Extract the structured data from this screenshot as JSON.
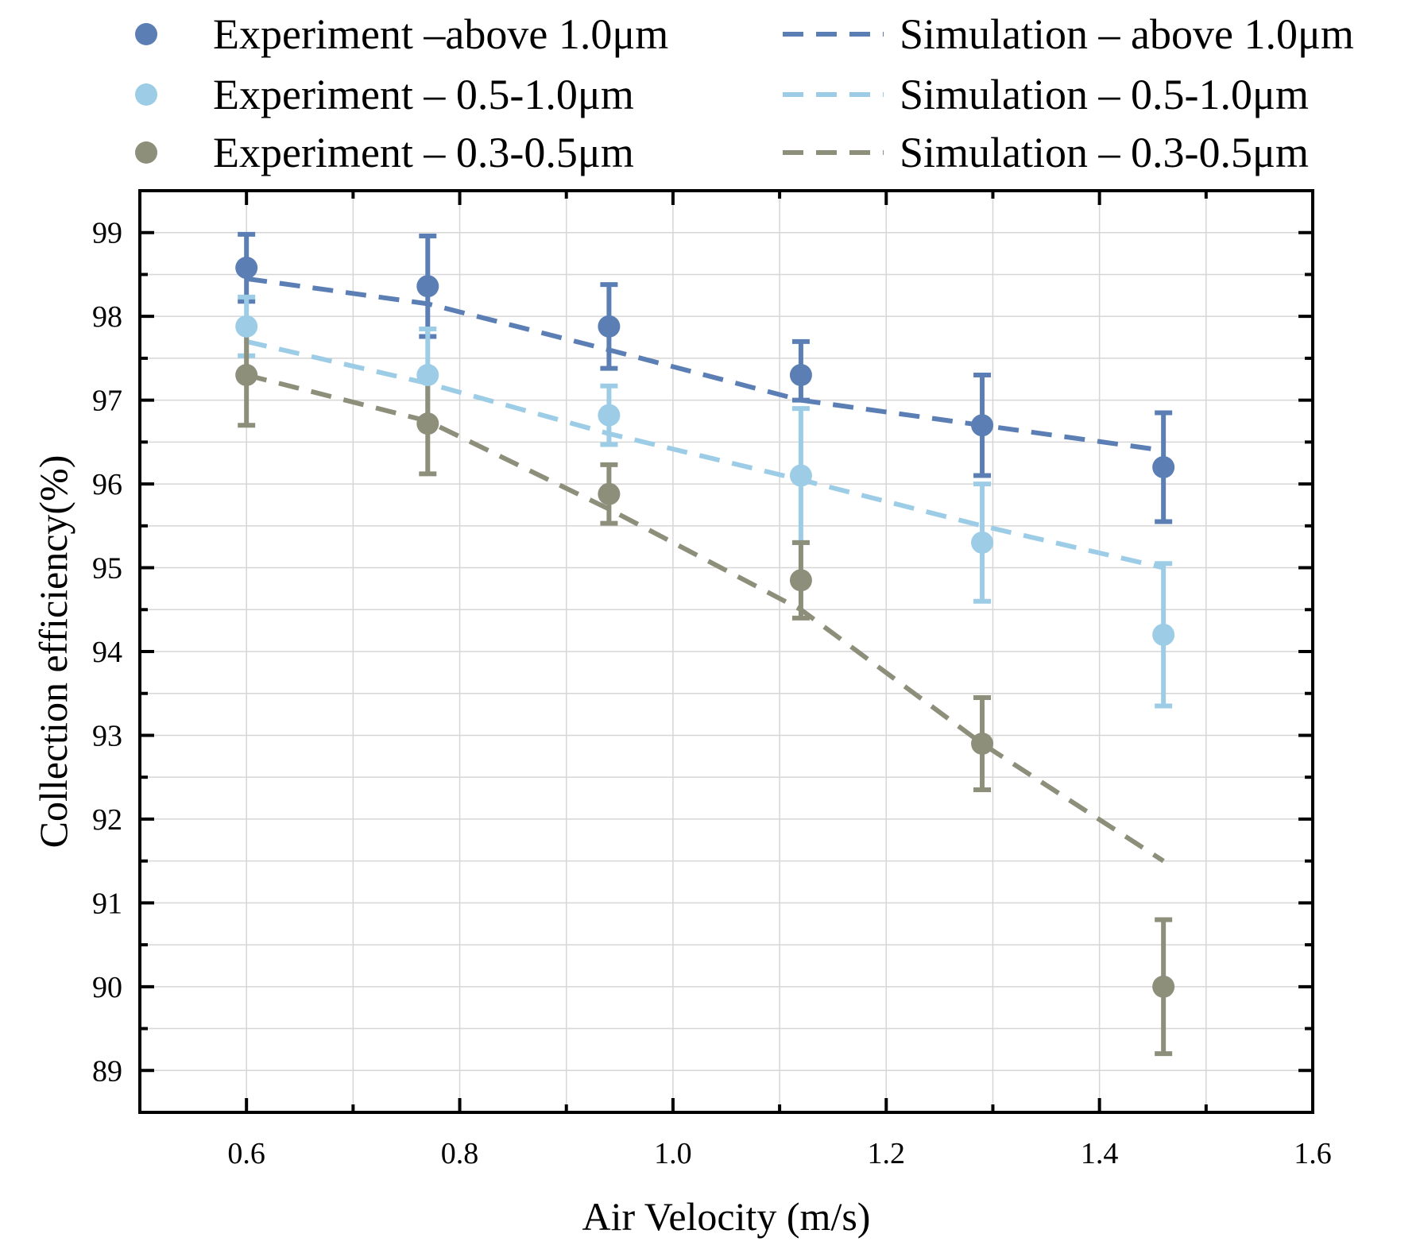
{
  "chart_data": {
    "type": "scatter",
    "xlabel": "Air Velocity (m/s)",
    "ylabel": "Collection efficiency(%)",
    "xlim": [
      0.5,
      1.6
    ],
    "ylim": [
      88.5,
      99.5
    ],
    "xticks": [
      0.6,
      0.8,
      1.0,
      1.2,
      1.4,
      1.6
    ],
    "xtick_labels": [
      "0.6",
      "0.8",
      "1.0",
      "1.2",
      "1.4",
      "1.6"
    ],
    "yticks": [
      89,
      90,
      91,
      92,
      93,
      94,
      95,
      96,
      97,
      98,
      99
    ],
    "ytick_labels": [
      "89",
      "90",
      "91",
      "92",
      "93",
      "94",
      "95",
      "96",
      "97",
      "98",
      "99"
    ],
    "grid": true,
    "legend_position": "top",
    "experiments": [
      {
        "name": "Experiment –above 1.0μm",
        "color": "#5b7fb5",
        "x": [
          0.6,
          0.77,
          0.94,
          1.12,
          1.29,
          1.46
        ],
        "y": [
          98.58,
          98.36,
          97.88,
          97.3,
          96.7,
          96.2
        ],
        "err_low": [
          0.4,
          0.6,
          0.5,
          0.3,
          0.6,
          0.65
        ],
        "err_high": [
          0.4,
          0.6,
          0.5,
          0.4,
          0.6,
          0.65
        ]
      },
      {
        "name": "Experiment – 0.5-1.0μm",
        "color": "#9dcde6",
        "x": [
          0.6,
          0.77,
          0.94,
          1.12,
          1.29,
          1.46
        ],
        "y": [
          97.88,
          97.3,
          96.82,
          96.1,
          95.3,
          94.2
        ],
        "err_low": [
          0.35,
          0.55,
          0.35,
          0.8,
          0.7,
          0.85
        ],
        "err_high": [
          0.35,
          0.55,
          0.35,
          0.8,
          0.7,
          0.85
        ]
      },
      {
        "name": "Experiment – 0.3-0.5μm",
        "color": "#8e8f7b",
        "x": [
          0.6,
          0.77,
          0.94,
          1.12,
          1.29,
          1.46
        ],
        "y": [
          97.3,
          96.72,
          95.88,
          94.85,
          92.9,
          90.0
        ],
        "err_low": [
          0.6,
          0.6,
          0.35,
          0.45,
          0.55,
          0.8
        ],
        "err_high": [
          0.6,
          0.6,
          0.35,
          0.45,
          0.55,
          0.8
        ]
      }
    ],
    "simulations": [
      {
        "name": "Simulation – above 1.0μm",
        "color": "#5b7fb5",
        "x": [
          0.6,
          0.77,
          0.94,
          1.12,
          1.29,
          1.46
        ],
        "y": [
          98.45,
          98.15,
          97.6,
          97.0,
          96.7,
          96.4
        ]
      },
      {
        "name": "Simulation – 0.5-1.0μm",
        "color": "#9dcde6",
        "x": [
          0.6,
          0.77,
          0.94,
          1.12,
          1.29,
          1.46
        ],
        "y": [
          97.7,
          97.2,
          96.6,
          96.05,
          95.5,
          95.0
        ]
      },
      {
        "name": "Simulation – 0.3-0.5μm",
        "color": "#8e8f7b",
        "x": [
          0.6,
          0.77,
          0.94,
          1.12,
          1.29,
          1.46
        ],
        "y": [
          97.3,
          96.75,
          95.7,
          94.5,
          92.9,
          91.5
        ]
      }
    ]
  }
}
